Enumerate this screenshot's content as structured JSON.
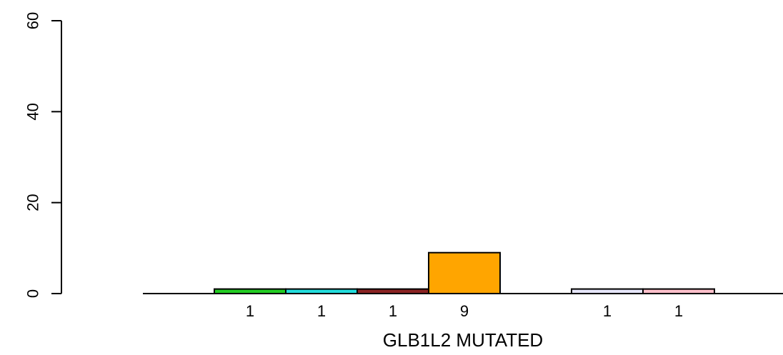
{
  "chart_data": {
    "type": "bar",
    "title": "",
    "xlabel": "GLB1L2 MUTATED",
    "ylabel": "",
    "ylim": [
      0,
      60
    ],
    "yticks": [
      0,
      20,
      40,
      60
    ],
    "grid": false,
    "categories": [
      "",
      "",
      "",
      "",
      "",
      "",
      "",
      "",
      ""
    ],
    "values": [
      0,
      1,
      1,
      1,
      9,
      0,
      1,
      1,
      0
    ],
    "data_labels": [
      "",
      "1",
      "1",
      "1",
      "9",
      "",
      "1",
      "1",
      ""
    ],
    "colors": [
      "#ffffff",
      "#22cc22",
      "#22dddd",
      "#8b2323",
      "#ffa500",
      "#ffffff",
      "#e6e6fa",
      "#ffc0cb",
      "#ffffff"
    ]
  }
}
